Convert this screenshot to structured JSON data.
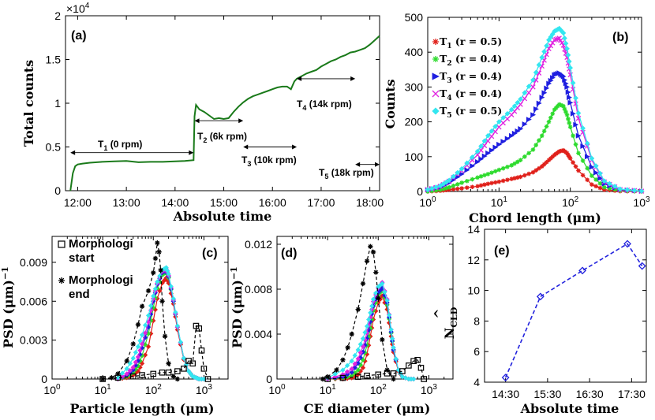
{
  "colors": {
    "green": "#1a7a1a",
    "red": "#e0201a",
    "lime": "#2edb2e",
    "blue": "#1f1fe0",
    "magenta": "#e024e0",
    "cyan": "#33e6f0",
    "black": "#000000",
    "dash_blue": "#2222dd"
  },
  "chart_data": [
    {
      "id": "a",
      "panel_label": "(a)",
      "type": "line",
      "xlabel": "Absolute time",
      "ylabel": "Total counts",
      "exponent": "×10",
      "exponent_power": "4",
      "x_range_hours": [
        11.75,
        18.2
      ],
      "ylim": [
        0,
        20000
      ],
      "xticks": [
        "12:00",
        "13:00",
        "14:00",
        "15:00",
        "16:00",
        "17:00",
        "18:00"
      ],
      "xtick_hours": [
        12,
        13,
        14,
        15,
        16,
        17,
        18
      ],
      "yticks": [
        "0",
        "0.5",
        "1",
        "1.5",
        "2"
      ],
      "ytick_values": [
        0,
        5000,
        10000,
        15000,
        20000
      ],
      "series": [
        {
          "name": "Total counts",
          "x_hours": [
            11.85,
            11.9,
            11.95,
            12.0,
            12.1,
            12.25,
            12.5,
            12.75,
            13.0,
            13.25,
            13.5,
            13.75,
            14.0,
            14.2,
            14.38,
            14.4,
            14.43,
            14.5,
            14.6,
            14.7,
            14.8,
            14.9,
            15.0,
            15.1,
            15.2,
            15.3,
            15.4,
            15.5,
            15.6,
            15.7,
            15.8,
            15.9,
            16.0,
            16.1,
            16.2,
            16.3,
            16.38,
            16.45,
            16.5,
            16.6,
            16.7,
            16.8,
            16.9,
            17.0,
            17.1,
            17.2,
            17.3,
            17.4,
            17.5,
            17.6,
            17.7,
            17.8,
            17.9,
            18.0,
            18.1,
            18.2
          ],
          "values": [
            0,
            2000,
            2800,
            3000,
            3100,
            3200,
            3300,
            3350,
            3400,
            3250,
            3300,
            3300,
            3350,
            3400,
            3500,
            8500,
            9800,
            9300,
            9000,
            8600,
            8200,
            8300,
            8200,
            8300,
            9000,
            9600,
            10100,
            10500,
            10800,
            11000,
            11200,
            11400,
            11600,
            11800,
            11900,
            11900,
            11600,
            12500,
            12800,
            13100,
            13400,
            13600,
            13800,
            14200,
            14500,
            14800,
            15000,
            15300,
            15500,
            15800,
            15900,
            16100,
            16300,
            16700,
            17200,
            17700
          ]
        }
      ],
      "annotations": [
        {
          "base": "T",
          "sub": "1",
          "rest": " (0 rpm)",
          "x_from": 11.85,
          "x_to": 14.38,
          "y": 4350
        },
        {
          "base": "T",
          "sub": "2",
          "rest": " (6k rpm)",
          "x_from": 14.4,
          "x_to": 15.4,
          "y": 8000
        },
        {
          "base": "T",
          "sub": "3",
          "rest": " (10k rpm)",
          "x_from": 15.4,
          "x_to": 16.5,
          "y": 5000
        },
        {
          "base": "T",
          "sub": "4",
          "rest": " (14k rpm)",
          "x_from": 16.5,
          "x_to": 17.7,
          "y": 12800
        },
        {
          "base": "T",
          "sub": "5",
          "rest": " (18k rpm)",
          "x_from": 17.7,
          "x_to": 18.2,
          "y": 3000
        }
      ]
    },
    {
      "id": "b",
      "panel_label": "(b)",
      "type": "line",
      "xscale": "log",
      "xlabel": "Chord length (μm)",
      "ylabel": "Counts",
      "xlim": [
        1,
        1000
      ],
      "ylim": [
        0,
        500
      ],
      "xtick_base": "10",
      "xtick_powers": [
        "0",
        "1",
        "2",
        "3"
      ],
      "yticks": [
        "0",
        "100",
        "200",
        "300",
        "400",
        "500"
      ],
      "x": [
        1,
        1.5,
        2,
        3,
        5,
        7,
        10,
        15,
        20,
        30,
        40,
        50,
        60,
        70,
        80,
        90,
        100,
        130,
        200,
        300,
        500,
        1000
      ],
      "series": [
        {
          "name": "T",
          "sub": "1",
          "rest": " (r = 0.5)",
          "color_key": "red",
          "marker": "star",
          "values": [
            0,
            2,
            5,
            9,
            15,
            22,
            28,
            36,
            42,
            55,
            72,
            90,
            105,
            115,
            118,
            110,
            95,
            60,
            20,
            5,
            1,
            0
          ]
        },
        {
          "name": "T",
          "sub": "2",
          "rest": " (r = 0.4)",
          "color_key": "lime",
          "marker": "star",
          "values": [
            0,
            5,
            12,
            25,
            40,
            50,
            62,
            75,
            90,
            120,
            160,
            200,
            235,
            250,
            245,
            220,
            185,
            110,
            45,
            12,
            3,
            0
          ]
        },
        {
          "name": "T",
          "sub": "3",
          "rest": " (r = 0.4)",
          "color_key": "blue",
          "marker": "triangle",
          "values": [
            5,
            12,
            25,
            50,
            85,
            110,
            135,
            160,
            180,
            220,
            270,
            310,
            335,
            340,
            330,
            300,
            255,
            160,
            70,
            22,
            5,
            1
          ]
        },
        {
          "name": "T",
          "sub": "4",
          "rest": " (r = 0.4)",
          "color_key": "magenta",
          "marker": "x",
          "values": [
            5,
            15,
            30,
            60,
            105,
            145,
            185,
            220,
            250,
            300,
            360,
            410,
            435,
            440,
            420,
            385,
            335,
            210,
            90,
            28,
            6,
            1
          ]
        },
        {
          "name": "T",
          "sub": "5",
          "rest": " (r = 0.5)",
          "color_key": "cyan",
          "marker": "diamond",
          "values": [
            5,
            16,
            32,
            65,
            115,
            160,
            200,
            235,
            265,
            320,
            385,
            435,
            460,
            468,
            455,
            410,
            355,
            225,
            95,
            30,
            7,
            1
          ]
        }
      ]
    },
    {
      "id": "c",
      "panel_label": "(c)",
      "type": "line",
      "xscale": "log",
      "xlabel": "Particle length (μm)",
      "ylabel": "PSD (μm)",
      "ylabel_power": "−1",
      "xlim": [
        1,
        3000
      ],
      "ylim": [
        0,
        0.011
      ],
      "xtick_base": "10",
      "xtick_powers": [
        "0",
        "1",
        "2",
        "3"
      ],
      "yticks": [
        "0",
        "0.003",
        "0.006",
        "0.009"
      ],
      "legend": [
        {
          "marker": "square",
          "lines": [
            "Morphologi",
            "start"
          ]
        },
        {
          "marker": "star",
          "lines": [
            "Morphologi",
            "end"
          ]
        }
      ],
      "x": [
        20,
        30,
        40,
        50,
        60,
        80,
        100,
        120,
        150,
        180,
        200,
        250,
        300,
        400,
        500,
        600,
        700,
        800,
        1000
      ],
      "series": [
        {
          "name": "T1",
          "color_key": "red",
          "values": [
            0,
            0.0001,
            0.0003,
            0.0006,
            0.0012,
            0.0025,
            0.0045,
            0.0062,
            0.0074,
            0.0078,
            0.0074,
            0.0058,
            0.0038,
            0.0015,
            0.0006,
            0.0002,
            0.0001,
            0,
            0
          ]
        },
        {
          "name": "T2",
          "color_key": "lime",
          "values": [
            0,
            0.0002,
            0.0005,
            0.001,
            0.0018,
            0.0035,
            0.0055,
            0.007,
            0.008,
            0.0083,
            0.0078,
            0.006,
            0.004,
            0.0016,
            0.0006,
            0.0002,
            0.0001,
            0,
            0
          ]
        },
        {
          "name": "T3",
          "color_key": "blue",
          "values": [
            0,
            0.0003,
            0.0007,
            0.0014,
            0.0024,
            0.004,
            0.006,
            0.0073,
            0.0082,
            0.0084,
            0.0079,
            0.006,
            0.004,
            0.0016,
            0.0006,
            0.0002,
            0.0001,
            0,
            0
          ]
        },
        {
          "name": "T4",
          "color_key": "magenta",
          "values": [
            0,
            0.0004,
            0.0009,
            0.0017,
            0.0027,
            0.0044,
            0.0062,
            0.0074,
            0.0083,
            0.0085,
            0.008,
            0.0061,
            0.004,
            0.0016,
            0.0006,
            0.0002,
            0.0001,
            0,
            0
          ]
        },
        {
          "name": "T5",
          "color_key": "cyan",
          "values": [
            0.0001,
            0.0008,
            0.0016,
            0.0025,
            0.0034,
            0.0049,
            0.0064,
            0.0075,
            0.0084,
            0.0086,
            0.0081,
            0.0062,
            0.0041,
            0.0016,
            0.0006,
            0.0002,
            0.0001,
            0,
            0
          ]
        },
        {
          "name": "Morphologi start",
          "color_key": "black",
          "marker": "square",
          "x": [
            10,
            20,
            40,
            60,
            100,
            150,
            200,
            300,
            400,
            500,
            600,
            700,
            800,
            900,
            1000,
            1200
          ],
          "values": [
            0,
            0.0001,
            0.0002,
            0.0003,
            0.0004,
            0.0005,
            0.0005,
            0.0006,
            0.0008,
            0.0014,
            0.0012,
            0.0041,
            0.0039,
            0.0022,
            0.0008,
            0
          ]
        },
        {
          "name": "Morphologi end",
          "color_key": "black",
          "marker": "star",
          "x": [
            10,
            15,
            20,
            30,
            40,
            50,
            60,
            80,
            100,
            110,
            120,
            130,
            140,
            150,
            170,
            200,
            250,
            300
          ],
          "values": [
            0,
            0.0001,
            0.0004,
            0.0014,
            0.0027,
            0.0042,
            0.0056,
            0.0068,
            0.0082,
            0.0093,
            0.0105,
            0.0098,
            0.0084,
            0.006,
            0.0033,
            0.0012,
            0.0002,
            0
          ]
        }
      ]
    },
    {
      "id": "d",
      "panel_label": "(d)",
      "type": "line",
      "xscale": "log",
      "xlabel": "CE diameter (μm)",
      "ylabel": "PSD (μm)",
      "ylabel_power": "−1",
      "xlim": [
        1,
        3000
      ],
      "ylim": [
        0,
        0.0127
      ],
      "xtick_base": "10",
      "xtick_powers": [
        "0",
        "1",
        "2",
        "3"
      ],
      "yticks": [
        "0",
        "0.004",
        "0.008",
        "0.012"
      ],
      "x": [
        10,
        20,
        30,
        40,
        50,
        60,
        70,
        80,
        100,
        120,
        150,
        180,
        200,
        250,
        300,
        400,
        500
      ],
      "series": [
        {
          "name": "T1",
          "color_key": "red",
          "values": [
            0,
            0,
            0.0001,
            0.0004,
            0.001,
            0.0022,
            0.0038,
            0.0053,
            0.0068,
            0.0074,
            0.0062,
            0.0038,
            0.0024,
            0.0007,
            0.0002,
            0,
            0
          ]
        },
        {
          "name": "T2",
          "color_key": "lime",
          "values": [
            0,
            0.0001,
            0.0003,
            0.0008,
            0.0017,
            0.003,
            0.0045,
            0.0061,
            0.0075,
            0.0079,
            0.0066,
            0.0041,
            0.0026,
            0.0008,
            0.0002,
            0,
            0
          ]
        },
        {
          "name": "T3",
          "color_key": "blue",
          "values": [
            0,
            0.0002,
            0.0006,
            0.0014,
            0.0024,
            0.0036,
            0.0051,
            0.0065,
            0.0077,
            0.0081,
            0.0068,
            0.0042,
            0.0026,
            0.0008,
            0.0002,
            0,
            0
          ]
        },
        {
          "name": "T4",
          "color_key": "magenta",
          "values": [
            0,
            0.0004,
            0.0009,
            0.0018,
            0.0029,
            0.0041,
            0.0055,
            0.0069,
            0.0081,
            0.0086,
            0.0071,
            0.0044,
            0.0028,
            0.0008,
            0.0002,
            0,
            0
          ]
        },
        {
          "name": "T5",
          "color_key": "cyan",
          "values": [
            0.0001,
            0.0008,
            0.0016,
            0.0026,
            0.0036,
            0.0047,
            0.0059,
            0.0071,
            0.0082,
            0.0085,
            0.007,
            0.0044,
            0.0028,
            0.0008,
            0.0002,
            0,
            0
          ]
        },
        {
          "name": "Morphologi start",
          "color_key": "black",
          "marker": "square",
          "x": [
            10,
            20,
            40,
            60,
            100,
            150,
            200,
            300,
            400,
            500,
            600,
            700,
            800
          ],
          "values": [
            0,
            0.0001,
            0.0002,
            0.0003,
            0.0004,
            0.0005,
            0.0005,
            0.0007,
            0.0012,
            0.0016,
            0.0017,
            0.001,
            0
          ]
        },
        {
          "name": "Morphologi end",
          "color_key": "black",
          "marker": "star",
          "x": [
            8,
            10,
            15,
            20,
            25,
            30,
            40,
            50,
            60,
            70,
            80,
            90,
            100,
            120,
            150,
            200
          ],
          "values": [
            0,
            0.0002,
            0.0008,
            0.0017,
            0.0028,
            0.004,
            0.0062,
            0.0085,
            0.0105,
            0.0118,
            0.0113,
            0.0095,
            0.0072,
            0.0035,
            0.0008,
            0
          ]
        }
      ]
    },
    {
      "id": "e",
      "panel_label": "(e)",
      "type": "line",
      "xlabel": "Absolute time",
      "ylabel_base": "N",
      "ylabel_accent": "^",
      "ylabel_sub": "CLD",
      "x_range_hours": [
        14.0,
        17.85
      ],
      "ylim": [
        4,
        14
      ],
      "xticks": [
        "14:30",
        "15:30",
        "16:30",
        "17:30"
      ],
      "xtick_hours": [
        14.5,
        15.5,
        16.5,
        17.5
      ],
      "yticks": [
        "4",
        "6",
        "8",
        "10",
        "12",
        "14"
      ],
      "ytick_values": [
        4,
        6,
        8,
        10,
        12,
        14
      ],
      "series": [
        {
          "name": "N_CLD",
          "color_key": "dash_blue",
          "marker": "diamond",
          "linestyle": "dashed",
          "x_hours": [
            14.5,
            15.33,
            16.33,
            17.4,
            17.75
          ],
          "values": [
            4.3,
            9.6,
            11.3,
            13.05,
            11.6
          ]
        }
      ]
    }
  ]
}
